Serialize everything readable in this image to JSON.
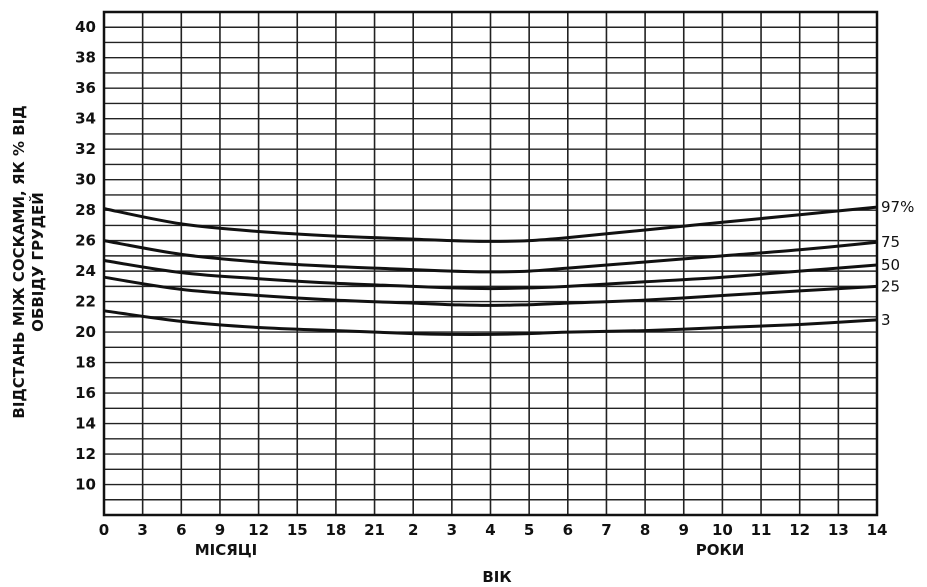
{
  "chart_data": {
    "type": "line",
    "title": "",
    "ylabel": [
      "ВІДСТАНЬ МІЖ СОСКАМИ, ЯК % ВІД",
      "ОБВІДУ ГРУДЕЙ"
    ],
    "xlabel": "ВІК",
    "x_group_labels": {
      "months": "МІСЯЦІ",
      "years": "РОКИ"
    },
    "ylim": [
      8,
      41
    ],
    "y_ticks": [
      10,
      12,
      14,
      16,
      18,
      20,
      22,
      24,
      26,
      28,
      30,
      32,
      34,
      36,
      38,
      40
    ],
    "x_ticks": [
      {
        "label": "0",
        "unit": "months"
      },
      {
        "label": "3",
        "unit": "months"
      },
      {
        "label": "6",
        "unit": "months"
      },
      {
        "label": "9",
        "unit": "months"
      },
      {
        "label": "12",
        "unit": "months"
      },
      {
        "label": "15",
        "unit": "months"
      },
      {
        "label": "18",
        "unit": "months"
      },
      {
        "label": "21",
        "unit": "months"
      },
      {
        "label": "2",
        "unit": "years"
      },
      {
        "label": "3",
        "unit": "years"
      },
      {
        "label": "4",
        "unit": "years"
      },
      {
        "label": "5",
        "unit": "years"
      },
      {
        "label": "6",
        "unit": "years"
      },
      {
        "label": "7",
        "unit": "years"
      },
      {
        "label": "8",
        "unit": "years"
      },
      {
        "label": "9",
        "unit": "years"
      },
      {
        "label": "10",
        "unit": "years"
      },
      {
        "label": "11",
        "unit": "years"
      },
      {
        "label": "12",
        "unit": "years"
      },
      {
        "label": "13",
        "unit": "years"
      },
      {
        "label": "14",
        "unit": "years"
      }
    ],
    "grid": true,
    "series": [
      {
        "name": "97%",
        "points": [
          [
            0,
            28.1
          ],
          [
            2,
            27.1
          ],
          [
            4,
            26.6
          ],
          [
            6,
            26.3
          ],
          [
            8,
            26.1
          ],
          [
            9,
            26.0
          ],
          [
            10,
            25.95
          ],
          [
            11,
            26.0
          ],
          [
            12,
            26.2
          ],
          [
            14,
            26.7
          ],
          [
            16,
            27.2
          ],
          [
            18,
            27.7
          ],
          [
            20,
            28.2
          ]
        ]
      },
      {
        "name": "75",
        "points": [
          [
            0,
            26.0
          ],
          [
            2,
            25.1
          ],
          [
            4,
            24.6
          ],
          [
            6,
            24.3
          ],
          [
            8,
            24.1
          ],
          [
            9,
            24.0
          ],
          [
            10,
            23.95
          ],
          [
            11,
            24.0
          ],
          [
            12,
            24.2
          ],
          [
            14,
            24.6
          ],
          [
            16,
            25.0
          ],
          [
            18,
            25.4
          ],
          [
            20,
            25.9
          ]
        ]
      },
      {
        "name": "50",
        "points": [
          [
            0,
            24.7
          ],
          [
            2,
            23.9
          ],
          [
            4,
            23.5
          ],
          [
            6,
            23.2
          ],
          [
            8,
            23.0
          ],
          [
            9,
            22.9
          ],
          [
            10,
            22.85
          ],
          [
            11,
            22.9
          ],
          [
            12,
            23.0
          ],
          [
            14,
            23.3
          ],
          [
            16,
            23.6
          ],
          [
            18,
            24.0
          ],
          [
            20,
            24.4
          ]
        ]
      },
      {
        "name": "25",
        "points": [
          [
            0,
            23.6
          ],
          [
            2,
            22.8
          ],
          [
            4,
            22.4
          ],
          [
            6,
            22.1
          ],
          [
            8,
            21.9
          ],
          [
            9,
            21.8
          ],
          [
            10,
            21.75
          ],
          [
            11,
            21.8
          ],
          [
            12,
            21.9
          ],
          [
            14,
            22.1
          ],
          [
            16,
            22.4
          ],
          [
            18,
            22.7
          ],
          [
            20,
            23.0
          ]
        ]
      },
      {
        "name": "3",
        "points": [
          [
            0,
            21.4
          ],
          [
            2,
            20.7
          ],
          [
            4,
            20.3
          ],
          [
            6,
            20.1
          ],
          [
            8,
            19.9
          ],
          [
            9,
            19.85
          ],
          [
            10,
            19.85
          ],
          [
            11,
            19.9
          ],
          [
            12,
            20.0
          ],
          [
            14,
            20.1
          ],
          [
            16,
            20.3
          ],
          [
            18,
            20.5
          ],
          [
            20,
            20.8
          ]
        ]
      }
    ]
  }
}
